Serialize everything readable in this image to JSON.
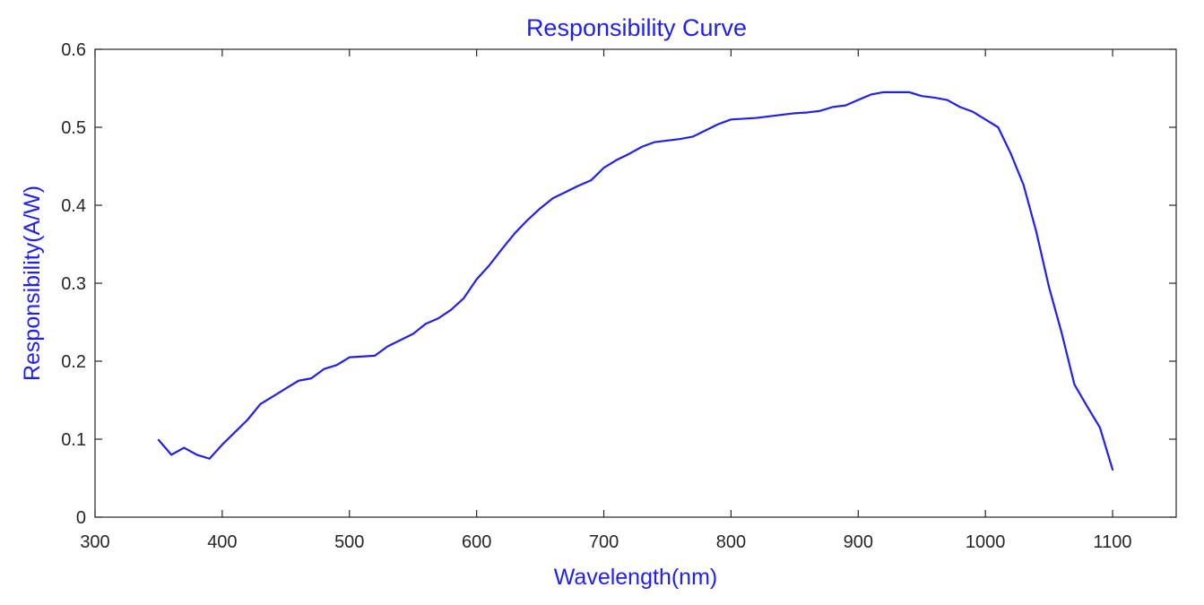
{
  "chart_data": {
    "type": "line",
    "title": "Responsibility Curve",
    "xlabel": "Wavelength(nm)",
    "ylabel": "Responsibility(A/W)",
    "xlim": [
      300,
      1150
    ],
    "ylim": [
      0,
      0.6
    ],
    "xticks": [
      300,
      400,
      500,
      600,
      700,
      800,
      900,
      1000,
      1100
    ],
    "yticks": [
      0,
      0.1,
      0.2,
      0.3,
      0.4,
      0.5,
      0.6
    ],
    "xtick_labels": [
      "300",
      "400",
      "500",
      "600",
      "700",
      "800",
      "900",
      "1000",
      "1100"
    ],
    "ytick_labels": [
      "0",
      "0.1",
      "0.2",
      "0.3",
      "0.4",
      "0.5",
      "0.6"
    ],
    "grid": false,
    "colors": {
      "line": "#1f1ff2",
      "text": "#1f1ff2",
      "axis": "#262626"
    },
    "series": [
      {
        "x": [
          350,
          360,
          370,
          380,
          390,
          400,
          410,
          420,
          430,
          440,
          450,
          460,
          470,
          480,
          490,
          500,
          510,
          520,
          530,
          540,
          550,
          560,
          570,
          580,
          590,
          600,
          610,
          620,
          630,
          640,
          650,
          660,
          670,
          680,
          690,
          700,
          710,
          720,
          730,
          740,
          750,
          760,
          770,
          780,
          790,
          800,
          810,
          820,
          830,
          840,
          850,
          860,
          870,
          880,
          890,
          900,
          910,
          920,
          930,
          940,
          950,
          960,
          970,
          980,
          990,
          1000,
          1010,
          1020,
          1030,
          1040,
          1050,
          1060,
          1070,
          1080,
          1090,
          1100
        ],
        "y": [
          0.099,
          0.08,
          0.089,
          0.08,
          0.075,
          0.093,
          0.109,
          0.125,
          0.145,
          0.155,
          0.165,
          0.175,
          0.178,
          0.19,
          0.195,
          0.205,
          0.206,
          0.207,
          0.219,
          0.227,
          0.235,
          0.248,
          0.255,
          0.266,
          0.281,
          0.305,
          0.323,
          0.344,
          0.364,
          0.381,
          0.396,
          0.409,
          0.417,
          0.425,
          0.432,
          0.448,
          0.458,
          0.466,
          0.475,
          0.481,
          0.483,
          0.485,
          0.488,
          0.496,
          0.504,
          0.51,
          0.511,
          0.512,
          0.514,
          0.516,
          0.518,
          0.519,
          0.521,
          0.526,
          0.528,
          0.535,
          0.542,
          0.545,
          0.545,
          0.545,
          0.54,
          0.538,
          0.535,
          0.526,
          0.52,
          0.51,
          0.5,
          0.466,
          0.426,
          0.366,
          0.295,
          0.236,
          0.17,
          0.142,
          0.115,
          0.061
        ]
      }
    ]
  }
}
